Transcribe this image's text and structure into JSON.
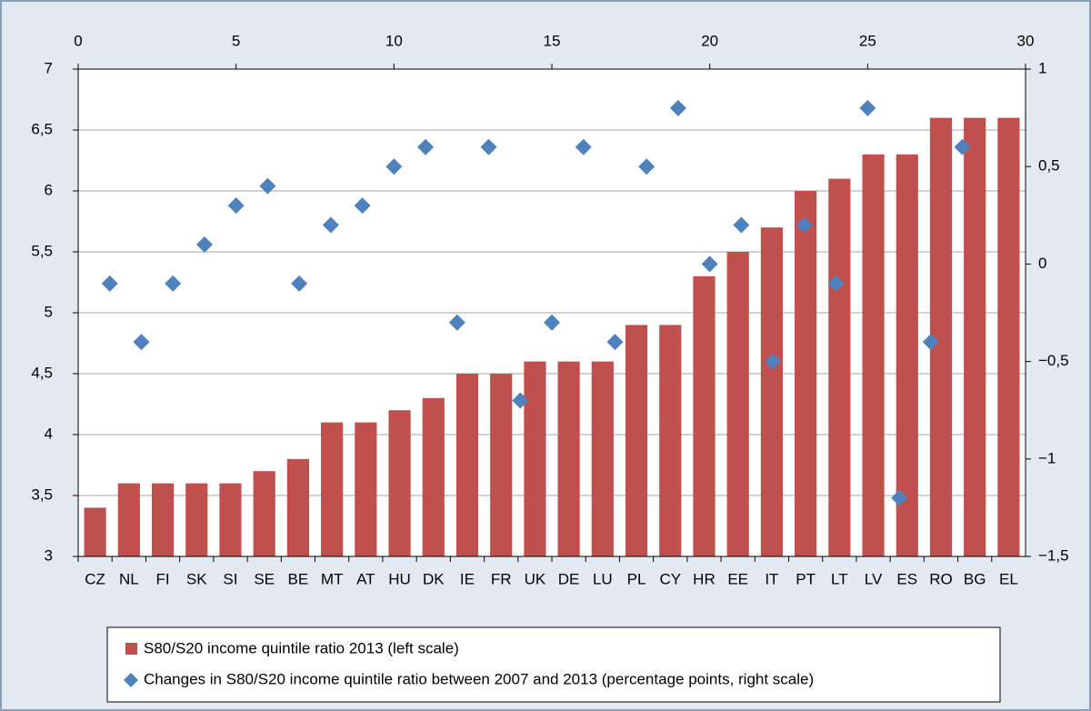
{
  "chart_data": {
    "type": "combo",
    "categories": [
      "CZ",
      "NL",
      "FI",
      "SK",
      "SI",
      "SE",
      "BE",
      "MT",
      "AT",
      "HU",
      "DK",
      "IE",
      "FR",
      "UK",
      "DE",
      "LU",
      "PL",
      "CY",
      "HR",
      "EE",
      "IT",
      "PT",
      "LT",
      "LV",
      "ES",
      "RO",
      "BG",
      "EL"
    ],
    "series": [
      {
        "type": "bar",
        "name": "S80/S20 income quintile ratio 2013 (left scale)",
        "color": "#c0504d",
        "values": [
          3.4,
          3.6,
          3.6,
          3.6,
          3.6,
          3.7,
          3.8,
          4.1,
          4.1,
          4.2,
          4.3,
          4.5,
          4.5,
          4.6,
          4.6,
          4.6,
          4.9,
          4.9,
          5.3,
          5.5,
          5.7,
          6.0,
          6.1,
          6.3,
          6.3,
          6.6,
          6.6,
          6.6
        ]
      },
      {
        "type": "scatter",
        "axis": "y2",
        "name": "Changes in S80/S20 income quintile ratio between 2007 and 2013 (percentage points, right scale)",
        "color": "#4f81bd",
        "x": [
          1,
          2,
          3,
          4,
          5,
          6,
          7,
          8,
          9,
          10,
          11,
          12,
          13,
          14,
          15,
          16,
          17,
          18,
          19,
          20,
          21,
          22,
          23,
          24,
          25,
          26,
          27,
          28
        ],
        "values": [
          -0.1,
          -0.4,
          -0.1,
          0.1,
          0.3,
          0.4,
          -0.1,
          0.2,
          0.3,
          0.5,
          0.6,
          -0.3,
          0.6,
          -0.7,
          -0.3,
          0.6,
          -0.4,
          0.5,
          0.8,
          0,
          0.2,
          -0.5,
          0.2,
          -0.1,
          0.8,
          -1.2,
          -0.4,
          0.6
        ]
      }
    ],
    "ylim": [
      3,
      7
    ],
    "yticks": [
      3,
      {
        "value": 3.5,
        "label": "3,5"
      },
      4,
      {
        "value": 4.5,
        "label": "4,5"
      },
      5,
      {
        "value": 5.5,
        "label": "5,5"
      },
      6,
      {
        "value": 6.5,
        "label": "6,5"
      },
      7
    ],
    "y2lim": [
      -1.5,
      1
    ],
    "y2ticks": [
      {
        "value": -1.5,
        "label": "−1,5"
      },
      {
        "value": -1,
        "label": "−1"
      },
      {
        "value": -0.5,
        "label": "−0,5"
      },
      0,
      {
        "value": 0.5,
        "label": "0,5"
      },
      1
    ],
    "x2lim": [
      0,
      30
    ],
    "x2ticks": [
      0,
      5,
      10,
      15,
      20,
      25,
      30
    ],
    "grid": true
  }
}
